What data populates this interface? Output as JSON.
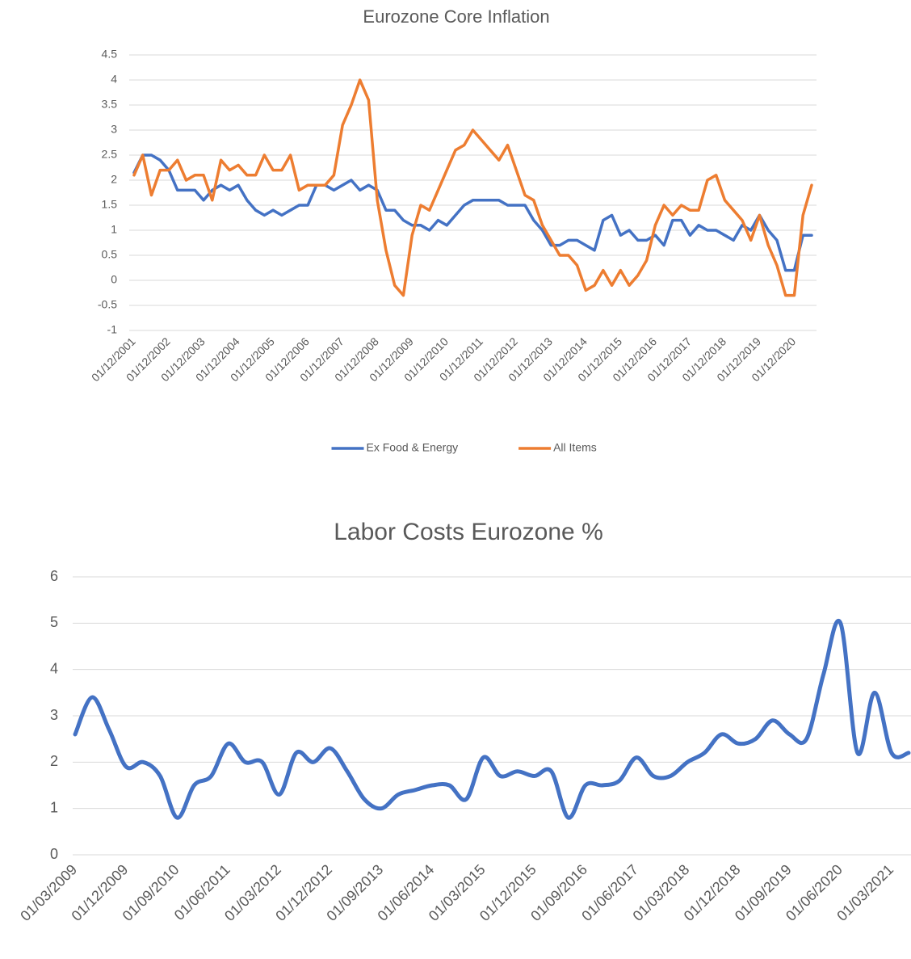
{
  "chart_data": [
    {
      "type": "line",
      "title": "Eurozone Core Inflation",
      "categories": [
        "01/12/2001",
        null,
        null,
        null,
        "01/12/2002",
        null,
        null,
        null,
        "01/12/2003",
        null,
        null,
        null,
        "01/12/2004",
        null,
        null,
        null,
        "01/12/2005",
        null,
        null,
        null,
        "01/12/2006",
        null,
        null,
        null,
        "01/12/2007",
        null,
        null,
        null,
        "01/12/2008",
        null,
        null,
        null,
        "01/12/2009",
        null,
        null,
        null,
        "01/12/2010",
        null,
        null,
        null,
        "01/12/2011",
        null,
        null,
        null,
        "01/12/2012",
        null,
        null,
        null,
        "01/12/2013",
        null,
        null,
        null,
        "01/12/2014",
        null,
        null,
        null,
        "01/12/2015",
        null,
        null,
        null,
        "01/12/2016",
        null,
        null,
        null,
        "01/12/2017",
        null,
        null,
        null,
        "01/12/2018",
        null,
        null,
        null,
        "01/12/2019",
        null,
        null,
        null,
        "01/12/2020",
        null,
        null
      ],
      "series": [
        {
          "name": "Ex Food & Energy",
          "color": "#4472c4",
          "values": [
            2.15,
            2.5,
            2.5,
            2.4,
            2.2,
            1.8,
            1.8,
            1.8,
            1.6,
            1.8,
            1.9,
            1.8,
            1.9,
            1.6,
            1.4,
            1.3,
            1.4,
            1.3,
            1.4,
            1.5,
            1.5,
            1.9,
            1.9,
            1.8,
            1.9,
            2.0,
            1.8,
            1.9,
            1.8,
            1.4,
            1.4,
            1.2,
            1.1,
            1.1,
            1.0,
            1.2,
            1.1,
            1.3,
            1.5,
            1.6,
            1.6,
            1.6,
            1.6,
            1.5,
            1.5,
            1.5,
            1.2,
            1.0,
            0.7,
            0.7,
            0.8,
            0.8,
            0.7,
            0.6,
            1.2,
            1.3,
            0.9,
            1.0,
            0.8,
            0.8,
            0.9,
            0.7,
            1.2,
            1.2,
            0.9,
            1.1,
            1.0,
            1.0,
            0.9,
            0.8,
            1.1,
            1.0,
            1.3,
            1.0,
            0.8,
            0.2,
            0.2,
            0.9,
            0.9
          ]
        },
        {
          "name": "All Items",
          "color": "#ed7d31",
          "values": [
            2.1,
            2.5,
            1.7,
            2.2,
            2.2,
            2.4,
            2.0,
            2.1,
            2.1,
            1.6,
            2.4,
            2.2,
            2.3,
            2.1,
            2.1,
            2.5,
            2.2,
            2.2,
            2.5,
            1.8,
            1.9,
            1.9,
            1.9,
            2.1,
            3.1,
            3.5,
            4.0,
            3.6,
            1.6,
            0.6,
            -0.1,
            -0.3,
            0.9,
            1.5,
            1.4,
            1.8,
            2.2,
            2.6,
            2.7,
            3.0,
            2.8,
            2.6,
            2.4,
            2.7,
            2.2,
            1.7,
            1.6,
            1.1,
            0.8,
            0.5,
            0.5,
            0.3,
            -0.2,
            -0.1,
            0.2,
            -0.1,
            0.2,
            -0.1,
            0.1,
            0.4,
            1.1,
            1.5,
            1.3,
            1.5,
            1.4,
            1.4,
            2.0,
            2.1,
            1.6,
            1.4,
            1.2,
            0.8,
            1.3,
            0.7,
            0.3,
            -0.3,
            -0.3,
            1.3,
            1.9
          ]
        }
      ],
      "ylim": [
        -1,
        4.5
      ],
      "yticks": [
        -1,
        -0.5,
        0,
        0.5,
        1,
        1.5,
        2,
        2.5,
        3,
        3.5,
        4,
        4.5
      ],
      "grid": true,
      "legend": "bottom",
      "smooth": false
    },
    {
      "type": "line",
      "title": "Labor Costs Eurozone %",
      "categories": [
        "01/03/2009",
        null,
        null,
        "01/12/2009",
        null,
        null,
        "01/09/2010",
        null,
        null,
        "01/06/2011",
        null,
        null,
        "01/03/2012",
        null,
        null,
        "01/12/2012",
        null,
        null,
        "01/09/2013",
        null,
        null,
        "01/06/2014",
        null,
        null,
        "01/03/2015",
        null,
        null,
        "01/12/2015",
        null,
        null,
        "01/09/2016",
        null,
        null,
        "01/06/2017",
        null,
        null,
        "01/03/2018",
        null,
        null,
        "01/12/2018",
        null,
        null,
        "01/09/2019",
        null,
        null,
        "01/06/2020",
        null,
        null,
        "01/03/2021",
        null
      ],
      "series": [
        {
          "color": "#4472c4",
          "values": [
            2.6,
            3.4,
            2.7,
            1.9,
            2.0,
            1.7,
            0.8,
            1.5,
            1.7,
            2.4,
            2.0,
            2.0,
            1.3,
            2.2,
            2.0,
            2.3,
            1.8,
            1.2,
            1.0,
            1.3,
            1.4,
            1.5,
            1.5,
            1.2,
            2.1,
            1.7,
            1.8,
            1.7,
            1.8,
            0.8,
            1.5,
            1.5,
            1.6,
            2.1,
            1.7,
            1.7,
            2.0,
            2.2,
            2.6,
            2.4,
            2.5,
            2.9,
            2.6,
            2.5,
            3.9,
            5.0,
            2.2,
            3.5,
            2.2,
            2.2
          ]
        }
      ],
      "ylim": [
        0,
        6
      ],
      "yticks": [
        0,
        1,
        2,
        3,
        4,
        5,
        6
      ],
      "grid": true,
      "smooth": true
    }
  ]
}
